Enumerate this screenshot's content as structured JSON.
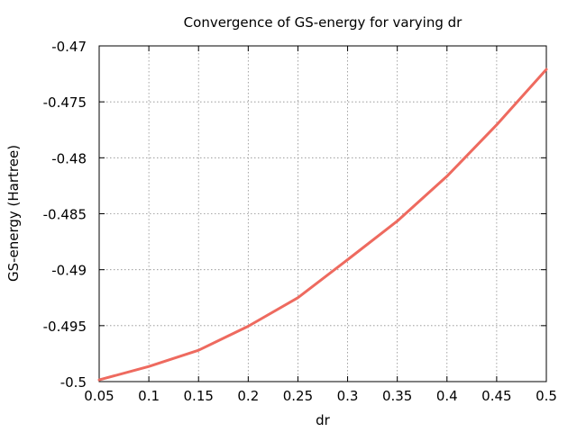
{
  "chart_data": {
    "type": "line",
    "title": "Convergence of GS-energy for varying dr",
    "xlabel": "dr",
    "ylabel": "GS-energy (Hartree)",
    "xlim": [
      0.05,
      0.5
    ],
    "ylim": [
      -0.5,
      -0.47
    ],
    "grid": true,
    "x_ticks": [
      0.05,
      0.1,
      0.15,
      0.2,
      0.25,
      0.3,
      0.35,
      0.4,
      0.45,
      0.5
    ],
    "x_tick_labels": [
      "0.05",
      "0.1",
      "0.15",
      "0.2",
      "0.25",
      "0.3",
      "0.35",
      "0.4",
      "0.45",
      "0.5"
    ],
    "y_ticks": [
      -0.47,
      -0.475,
      -0.48,
      -0.485,
      -0.49,
      -0.495,
      -0.5
    ],
    "y_tick_labels": [
      "-0.47",
      "-0.475",
      "-0.48",
      "-0.485",
      "-0.49",
      "-0.495",
      "-0.5"
    ],
    "series": [
      {
        "name": "GS-energy",
        "color": "#ee6a5f",
        "x": [
          0.05,
          0.1,
          0.15,
          0.2,
          0.25,
          0.3,
          0.35,
          0.4,
          0.45,
          0.5
        ],
        "y": [
          -0.49985,
          -0.49865,
          -0.4972,
          -0.49505,
          -0.4925,
          -0.4891,
          -0.48565,
          -0.48165,
          -0.47705,
          -0.4721
        ]
      }
    ]
  }
}
